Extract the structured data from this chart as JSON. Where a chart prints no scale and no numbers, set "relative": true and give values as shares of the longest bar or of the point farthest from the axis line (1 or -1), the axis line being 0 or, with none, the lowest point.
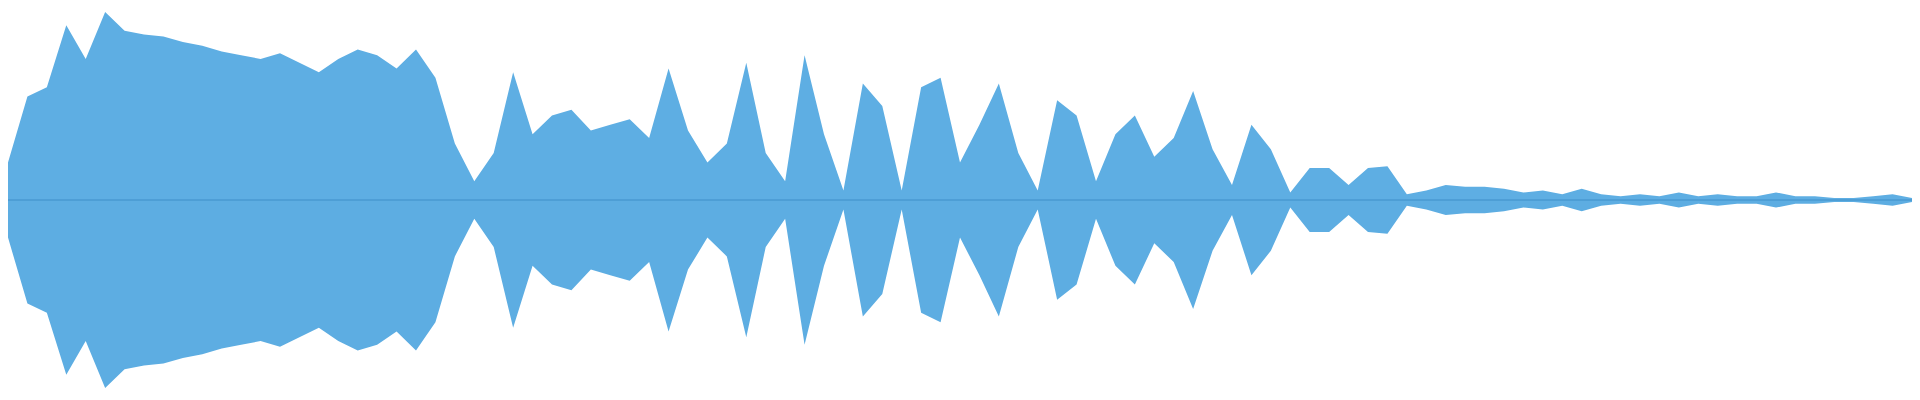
{
  "chart_data": {
    "type": "area",
    "relative": true,
    "ref_lines": [
      {
        "axis": "y",
        "value": 0,
        "color": "#3f8fc8"
      }
    ],
    "categories": [
      null,
      null,
      null,
      null,
      null,
      null,
      null,
      null,
      null,
      null,
      null,
      null,
      null,
      null,
      null,
      null,
      null,
      null,
      null,
      null,
      null,
      null,
      null,
      null,
      null,
      null,
      null,
      null,
      null,
      null,
      null,
      null,
      null,
      null,
      null,
      null,
      null,
      null,
      null,
      null,
      null,
      null,
      null,
      null,
      null,
      null,
      null,
      null,
      null,
      null,
      null,
      null,
      null,
      null,
      null,
      null,
      null,
      null,
      null,
      null,
      null,
      null,
      null,
      null,
      null,
      null,
      null,
      null,
      null,
      null,
      null,
      null,
      null,
      null,
      null,
      null,
      null,
      null,
      null,
      null,
      null,
      null,
      null,
      null,
      null,
      null,
      null,
      null,
      null,
      null,
      null,
      null,
      null,
      null,
      null,
      null,
      null,
      null,
      null
    ],
    "series": [
      {
        "color": "#5eaee3",
        "values": [
          0.2,
          0.55,
          0.6,
          0.93,
          0.75,
          1,
          0.9,
          0.88,
          0.87,
          0.84,
          0.82,
          0.79,
          0.77,
          0.75,
          0.78,
          0.73,
          0.68,
          0.75,
          0.8,
          0.77,
          0.7,
          0.8,
          0.65,
          0.3,
          0.1,
          0.25,
          0.68,
          0.35,
          0.45,
          0.48,
          0.37,
          0.4,
          0.43,
          0.33,
          0.7,
          0.37,
          0.2,
          0.3,
          0.73,
          0.25,
          0.1,
          0.77,
          0.35,
          0.05,
          0.62,
          0.5,
          0.05,
          0.6,
          0.65,
          0.2,
          0.4,
          0.62,
          0.25,
          0.05,
          0.53,
          0.45,
          0.1,
          0.35,
          0.45,
          0.23,
          0.33,
          0.58,
          0.27,
          0.08,
          0.4,
          0.27,
          0.04,
          0.17,
          0.17,
          0.08,
          0.17,
          0.18,
          0.03,
          0.05,
          0.08,
          0.07,
          0.07,
          0.06,
          0.04,
          0.05,
          0.03,
          0.06,
          0.03,
          0.02,
          0.03,
          0.02,
          0.04,
          0.02,
          0.03,
          0.02,
          0.02,
          0.04,
          0.02,
          0.02,
          0.01,
          0.01,
          0.02,
          0.03,
          0.01
        ]
      },
      {
        "color": "#5dade2",
        "values": [
          -0.2,
          -0.55,
          -0.6,
          -0.93,
          -0.75,
          -1,
          -0.9,
          -0.88,
          -0.87,
          -0.84,
          -0.82,
          -0.79,
          -0.77,
          -0.75,
          -0.78,
          -0.73,
          -0.68,
          -0.75,
          -0.8,
          -0.77,
          -0.7,
          -0.8,
          -0.65,
          -0.3,
          -0.1,
          -0.25,
          -0.68,
          -0.35,
          -0.45,
          -0.48,
          -0.37,
          -0.4,
          -0.43,
          -0.33,
          -0.7,
          -0.37,
          -0.2,
          -0.3,
          -0.73,
          -0.25,
          -0.1,
          -0.77,
          -0.35,
          -0.05,
          -0.62,
          -0.5,
          -0.05,
          -0.6,
          -0.65,
          -0.2,
          -0.4,
          -0.62,
          -0.25,
          -0.05,
          -0.53,
          -0.45,
          -0.1,
          -0.35,
          -0.45,
          -0.23,
          -0.33,
          -0.58,
          -0.27,
          -0.08,
          -0.4,
          -0.27,
          -0.04,
          -0.17,
          -0.17,
          -0.08,
          -0.17,
          -0.18,
          -0.03,
          -0.05,
          -0.08,
          -0.07,
          -0.07,
          -0.06,
          -0.04,
          -0.05,
          -0.03,
          -0.06,
          -0.03,
          -0.02,
          -0.03,
          -0.02,
          -0.04,
          -0.02,
          -0.03,
          -0.02,
          -0.02,
          -0.04,
          -0.02,
          -0.02,
          -0.01,
          -0.01,
          -0.02,
          -0.03,
          -0.01
        ]
      }
    ]
  }
}
